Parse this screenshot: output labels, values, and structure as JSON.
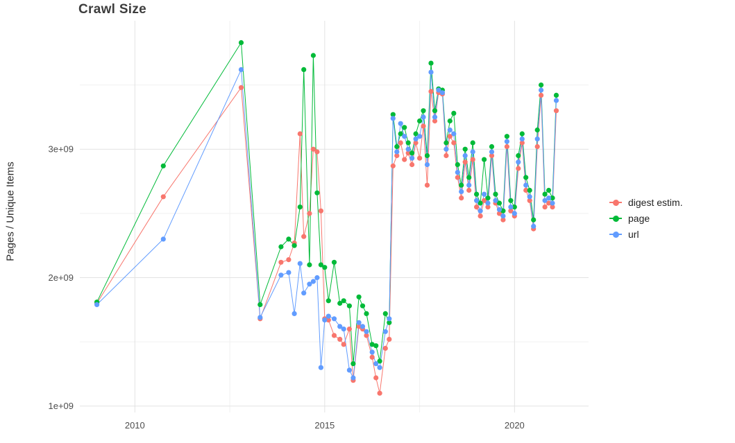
{
  "chart_data": {
    "type": "line",
    "title": "Crawl Size",
    "xlabel": "",
    "ylabel": "Pages / Unique Items",
    "legend_position": "right",
    "grid": true,
    "xlim": [
      2008.55,
      2021.95
    ],
    "ylim": [
      950000000.0,
      4000000000.0
    ],
    "x_ticks": [
      {
        "v": 2010,
        "label": "2010"
      },
      {
        "v": 2015,
        "label": "2015"
      },
      {
        "v": 2020,
        "label": "2020"
      }
    ],
    "y_ticks": [
      {
        "v": 1000000000.0,
        "label": "1e+09"
      },
      {
        "v": 2000000000.0,
        "label": "2e+09"
      },
      {
        "v": 3000000000.0,
        "label": "3e+09"
      }
    ],
    "x_major_gridlines": [
      2010,
      2015,
      2020
    ],
    "x_minor_gridlines": [
      2012.5,
      2017.5
    ],
    "y_major_gridlines": [
      1000000000.0,
      2000000000.0,
      3000000000.0
    ],
    "y_minor_gridlines": [
      1500000000.0,
      2500000000.0,
      3500000000.0
    ],
    "series": [
      {
        "name": "digest estim.",
        "color": "#F8766D",
        "points": [
          [
            2009.0,
            1800000000.0
          ],
          [
            2010.75,
            2630000000.0
          ],
          [
            2012.8,
            3480000000.0
          ],
          [
            2013.3,
            1680000000.0
          ],
          [
            2013.85,
            2120000000.0
          ],
          [
            2014.05,
            2140000000.0
          ],
          [
            2014.2,
            2270000000.0
          ],
          [
            2014.35,
            3120000000.0
          ],
          [
            2014.45,
            2320000000.0
          ],
          [
            2014.6,
            2500000000.0
          ],
          [
            2014.7,
            3000000000.0
          ],
          [
            2014.8,
            2980000000.0
          ],
          [
            2014.9,
            2520000000.0
          ],
          [
            2015.0,
            1680000000.0
          ],
          [
            2015.1,
            1670000000.0
          ],
          [
            2015.25,
            1550000000.0
          ],
          [
            2015.4,
            1520000000.0
          ],
          [
            2015.5,
            1480000000.0
          ],
          [
            2015.65,
            1600000000.0
          ],
          [
            2015.75,
            1200000000.0
          ],
          [
            2015.9,
            1620000000.0
          ],
          [
            2016.0,
            1600000000.0
          ],
          [
            2016.1,
            1550000000.0
          ],
          [
            2016.25,
            1380000000.0
          ],
          [
            2016.35,
            1220000000.0
          ],
          [
            2016.45,
            1100000000.0
          ],
          [
            2016.6,
            1450000000.0
          ],
          [
            2016.7,
            1520000000.0
          ],
          [
            2016.8,
            2870000000.0
          ],
          [
            2016.9,
            2950000000.0
          ],
          [
            2017.0,
            3050000000.0
          ],
          [
            2017.1,
            2920000000.0
          ],
          [
            2017.2,
            2970000000.0
          ],
          [
            2017.3,
            2880000000.0
          ],
          [
            2017.4,
            3050000000.0
          ],
          [
            2017.5,
            2930000000.0
          ],
          [
            2017.6,
            3180000000.0
          ],
          [
            2017.7,
            2720000000.0
          ],
          [
            2017.8,
            3450000000.0
          ],
          [
            2017.9,
            3220000000.0
          ],
          [
            2018.0,
            3440000000.0
          ],
          [
            2018.1,
            3430000000.0
          ],
          [
            2018.2,
            2950000000.0
          ],
          [
            2018.3,
            3100000000.0
          ],
          [
            2018.4,
            3050000000.0
          ],
          [
            2018.5,
            2780000000.0
          ],
          [
            2018.6,
            2620000000.0
          ],
          [
            2018.7,
            2900000000.0
          ],
          [
            2018.8,
            2680000000.0
          ],
          [
            2018.9,
            2920000000.0
          ],
          [
            2019.0,
            2550000000.0
          ],
          [
            2019.1,
            2480000000.0
          ],
          [
            2019.2,
            2600000000.0
          ],
          [
            2019.3,
            2550000000.0
          ],
          [
            2019.4,
            2950000000.0
          ],
          [
            2019.5,
            2580000000.0
          ],
          [
            2019.6,
            2500000000.0
          ],
          [
            2019.7,
            2450000000.0
          ],
          [
            2019.8,
            3020000000.0
          ],
          [
            2019.9,
            2520000000.0
          ],
          [
            2020.0,
            2480000000.0
          ],
          [
            2020.1,
            2850000000.0
          ],
          [
            2020.2,
            3050000000.0
          ],
          [
            2020.3,
            2680000000.0
          ],
          [
            2020.4,
            2600000000.0
          ],
          [
            2020.5,
            2380000000.0
          ],
          [
            2020.6,
            3020000000.0
          ],
          [
            2020.7,
            3420000000.0
          ],
          [
            2020.8,
            2550000000.0
          ],
          [
            2020.9,
            2580000000.0
          ],
          [
            2021.0,
            2550000000.0
          ],
          [
            2021.1,
            3300000000.0
          ]
        ]
      },
      {
        "name": "page",
        "color": "#00BA38",
        "points": [
          [
            2009.0,
            1810000000.0
          ],
          [
            2010.75,
            2870000000.0
          ],
          [
            2012.8,
            3830000000.0
          ],
          [
            2013.3,
            1790000000.0
          ],
          [
            2013.85,
            2240000000.0
          ],
          [
            2014.05,
            2300000000.0
          ],
          [
            2014.2,
            2250000000.0
          ],
          [
            2014.35,
            2550000000.0
          ],
          [
            2014.45,
            3620000000.0
          ],
          [
            2014.6,
            2100000000.0
          ],
          [
            2014.7,
            3730000000.0
          ],
          [
            2014.8,
            2660000000.0
          ],
          [
            2014.9,
            2100000000.0
          ],
          [
            2015.0,
            2080000000.0
          ],
          [
            2015.1,
            1820000000.0
          ],
          [
            2015.25,
            2120000000.0
          ],
          [
            2015.4,
            1800000000.0
          ],
          [
            2015.5,
            1820000000.0
          ],
          [
            2015.65,
            1780000000.0
          ],
          [
            2015.75,
            1330000000.0
          ],
          [
            2015.9,
            1850000000.0
          ],
          [
            2016.0,
            1780000000.0
          ],
          [
            2016.1,
            1720000000.0
          ],
          [
            2016.25,
            1480000000.0
          ],
          [
            2016.35,
            1470000000.0
          ],
          [
            2016.45,
            1350000000.0
          ],
          [
            2016.6,
            1720000000.0
          ],
          [
            2016.7,
            1650000000.0
          ],
          [
            2016.8,
            3270000000.0
          ],
          [
            2016.9,
            3020000000.0
          ],
          [
            2017.0,
            3120000000.0
          ],
          [
            2017.1,
            3170000000.0
          ],
          [
            2017.2,
            3050000000.0
          ],
          [
            2017.3,
            2970000000.0
          ],
          [
            2017.4,
            3120000000.0
          ],
          [
            2017.5,
            3220000000.0
          ],
          [
            2017.6,
            3300000000.0
          ],
          [
            2017.7,
            2950000000.0
          ],
          [
            2017.8,
            3670000000.0
          ],
          [
            2017.9,
            3300000000.0
          ],
          [
            2018.0,
            3470000000.0
          ],
          [
            2018.1,
            3460000000.0
          ],
          [
            2018.2,
            3050000000.0
          ],
          [
            2018.3,
            3220000000.0
          ],
          [
            2018.4,
            3280000000.0
          ],
          [
            2018.5,
            2880000000.0
          ],
          [
            2018.6,
            2720000000.0
          ],
          [
            2018.7,
            3000000000.0
          ],
          [
            2018.8,
            2780000000.0
          ],
          [
            2018.9,
            3050000000.0
          ],
          [
            2019.0,
            2650000000.0
          ],
          [
            2019.1,
            2580000000.0
          ],
          [
            2019.2,
            2920000000.0
          ],
          [
            2019.3,
            2620000000.0
          ],
          [
            2019.4,
            3020000000.0
          ],
          [
            2019.5,
            2650000000.0
          ],
          [
            2019.6,
            2580000000.0
          ],
          [
            2019.7,
            2520000000.0
          ],
          [
            2019.8,
            3100000000.0
          ],
          [
            2019.9,
            2600000000.0
          ],
          [
            2020.0,
            2550000000.0
          ],
          [
            2020.1,
            2950000000.0
          ],
          [
            2020.2,
            3120000000.0
          ],
          [
            2020.3,
            2780000000.0
          ],
          [
            2020.4,
            2680000000.0
          ],
          [
            2020.5,
            2450000000.0
          ],
          [
            2020.6,
            3150000000.0
          ],
          [
            2020.7,
            3500000000.0
          ],
          [
            2020.8,
            2650000000.0
          ],
          [
            2020.9,
            2680000000.0
          ],
          [
            2021.0,
            2620000000.0
          ],
          [
            2021.1,
            3420000000.0
          ]
        ]
      },
      {
        "name": "url",
        "color": "#619CFF",
        "points": [
          [
            2009.0,
            1790000000.0
          ],
          [
            2010.75,
            2300000000.0
          ],
          [
            2012.8,
            3620000000.0
          ],
          [
            2013.3,
            1690000000.0
          ],
          [
            2013.85,
            2020000000.0
          ],
          [
            2014.05,
            2040000000.0
          ],
          [
            2014.2,
            1720000000.0
          ],
          [
            2014.35,
            2110000000.0
          ],
          [
            2014.45,
            1880000000.0
          ],
          [
            2014.6,
            1950000000.0
          ],
          [
            2014.7,
            1970000000.0
          ],
          [
            2014.8,
            2000000000.0
          ],
          [
            2014.9,
            1300000000.0
          ],
          [
            2015.0,
            1670000000.0
          ],
          [
            2015.1,
            1700000000.0
          ],
          [
            2015.25,
            1680000000.0
          ],
          [
            2015.4,
            1620000000.0
          ],
          [
            2015.5,
            1600000000.0
          ],
          [
            2015.65,
            1280000000.0
          ],
          [
            2015.75,
            1220000000.0
          ],
          [
            2015.9,
            1650000000.0
          ],
          [
            2016.0,
            1620000000.0
          ],
          [
            2016.1,
            1580000000.0
          ],
          [
            2016.25,
            1420000000.0
          ],
          [
            2016.35,
            1330000000.0
          ],
          [
            2016.45,
            1300000000.0
          ],
          [
            2016.6,
            1580000000.0
          ],
          [
            2016.7,
            1680000000.0
          ],
          [
            2016.8,
            3240000000.0
          ],
          [
            2016.9,
            2980000000.0
          ],
          [
            2017.0,
            3200000000.0
          ],
          [
            2017.1,
            3100000000.0
          ],
          [
            2017.2,
            3000000000.0
          ],
          [
            2017.3,
            2930000000.0
          ],
          [
            2017.4,
            3080000000.0
          ],
          [
            2017.5,
            3100000000.0
          ],
          [
            2017.6,
            3250000000.0
          ],
          [
            2017.7,
            2880000000.0
          ],
          [
            2017.8,
            3600000000.0
          ],
          [
            2017.9,
            3250000000.0
          ],
          [
            2018.0,
            3460000000.0
          ],
          [
            2018.1,
            3440000000.0
          ],
          [
            2018.2,
            3000000000.0
          ],
          [
            2018.3,
            3150000000.0
          ],
          [
            2018.4,
            3120000000.0
          ],
          [
            2018.5,
            2820000000.0
          ],
          [
            2018.6,
            2670000000.0
          ],
          [
            2018.7,
            2950000000.0
          ],
          [
            2018.8,
            2720000000.0
          ],
          [
            2018.9,
            2980000000.0
          ],
          [
            2019.0,
            2600000000.0
          ],
          [
            2019.1,
            2520000000.0
          ],
          [
            2019.2,
            2650000000.0
          ],
          [
            2019.3,
            2580000000.0
          ],
          [
            2019.4,
            2980000000.0
          ],
          [
            2019.5,
            2600000000.0
          ],
          [
            2019.6,
            2530000000.0
          ],
          [
            2019.7,
            2480000000.0
          ],
          [
            2019.8,
            3060000000.0
          ],
          [
            2019.9,
            2550000000.0
          ],
          [
            2020.0,
            2500000000.0
          ],
          [
            2020.1,
            2900000000.0
          ],
          [
            2020.2,
            3080000000.0
          ],
          [
            2020.3,
            2720000000.0
          ],
          [
            2020.4,
            2630000000.0
          ],
          [
            2020.5,
            2400000000.0
          ],
          [
            2020.6,
            3080000000.0
          ],
          [
            2020.7,
            3460000000.0
          ],
          [
            2020.8,
            2600000000.0
          ],
          [
            2020.9,
            2620000000.0
          ],
          [
            2021.0,
            2580000000.0
          ],
          [
            2021.1,
            3380000000.0
          ]
        ]
      }
    ]
  }
}
